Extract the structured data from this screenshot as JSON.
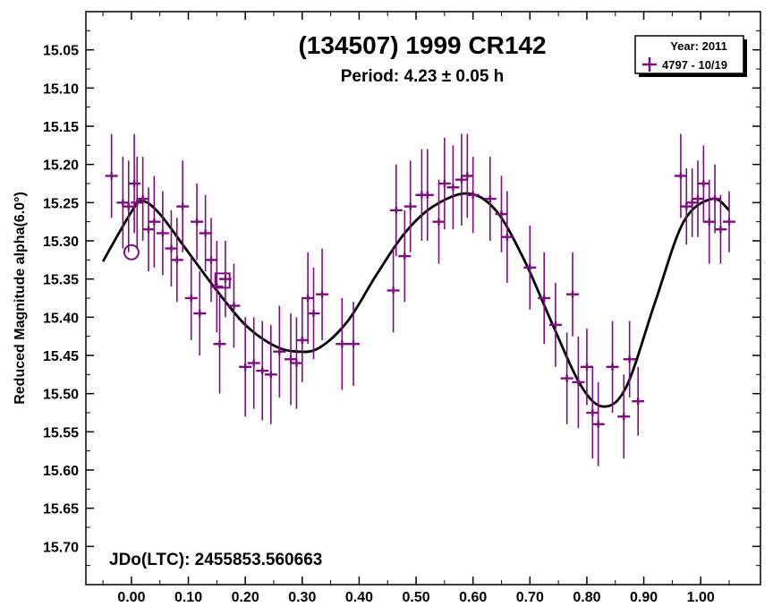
{
  "chart_data": {
    "type": "scatter",
    "title": "(134507) 1999 CR142",
    "subtitle": "Period: 4.23 ± 0.05 h",
    "xlabel": "",
    "ylabel": "Reduced Magnitude alpha(6.0°)",
    "xlim": [
      -0.08,
      1.105
    ],
    "ylim": [
      15.0,
      15.75
    ],
    "y_inverted": true,
    "x_ticks": [
      0.0,
      0.1,
      0.2,
      0.3,
      0.4,
      0.5,
      0.6,
      0.7,
      0.8,
      0.9,
      1.0
    ],
    "x_tick_labels": [
      "0.00",
      "0.10",
      "0.20",
      "0.30",
      "0.40",
      "0.50",
      "0.60",
      "0.70",
      "0.80",
      "0.90",
      "1.00"
    ],
    "y_ticks": [
      15.05,
      15.1,
      15.15,
      15.2,
      15.25,
      15.3,
      15.35,
      15.4,
      15.45,
      15.5,
      15.55,
      15.6,
      15.65,
      15.7
    ],
    "y_tick_labels": [
      "15.05",
      "15.10",
      "15.15",
      "15.20",
      "15.25",
      "15.30",
      "15.35",
      "15.40",
      "15.45",
      "15.50",
      "15.55",
      "15.60",
      "15.65",
      "15.70"
    ],
    "legend": {
      "placement": "top-right",
      "title": "Year: 2011",
      "entries": [
        {
          "label": "4797 - 10/19",
          "color": "#7b0f7b"
        }
      ]
    },
    "annotation": "JDo(LTC): 2455853.560663",
    "series_color": "#7b0f7b",
    "fit_color": "#000000",
    "series": [
      {
        "name": "4797 - 10/19",
        "x": [
          -0.035,
          -0.015,
          -0.005,
          0.005,
          0.01,
          0.02,
          0.03,
          0.04,
          0.055,
          0.07,
          0.08,
          0.09,
          0.105,
          0.115,
          0.12,
          0.13,
          0.14,
          0.15,
          0.155,
          0.165,
          0.18,
          0.2,
          0.215,
          0.23,
          0.245,
          0.26,
          0.28,
          0.29,
          0.3,
          0.31,
          0.32,
          0.335,
          0.37,
          0.39,
          0.46,
          0.465,
          0.48,
          0.49,
          0.51,
          0.52,
          0.54,
          0.55,
          0.565,
          0.58,
          0.59,
          0.6,
          0.63,
          0.65,
          0.66,
          0.7,
          0.725,
          0.745,
          0.765,
          0.775,
          0.785,
          0.8,
          0.81,
          0.82,
          0.845,
          0.865,
          0.875,
          0.89,
          0.965,
          0.975,
          0.985,
          0.995,
          1.005,
          1.015,
          1.025,
          1.035,
          1.05
        ],
        "y": [
          15.215,
          15.25,
          15.255,
          15.225,
          15.25,
          15.245,
          15.285,
          15.275,
          15.29,
          15.31,
          15.325,
          15.255,
          15.375,
          15.275,
          15.395,
          15.29,
          15.325,
          15.36,
          15.435,
          15.35,
          15.385,
          15.465,
          15.46,
          15.47,
          15.475,
          15.445,
          15.455,
          15.46,
          15.43,
          15.375,
          15.395,
          15.37,
          15.435,
          15.435,
          15.365,
          15.26,
          15.32,
          15.255,
          15.24,
          15.24,
          15.275,
          15.225,
          15.23,
          15.22,
          15.215,
          15.24,
          15.245,
          15.265,
          15.295,
          15.335,
          15.375,
          15.41,
          15.48,
          15.37,
          15.485,
          15.465,
          15.525,
          15.54,
          15.465,
          15.53,
          15.455,
          15.51,
          15.215,
          15.255,
          15.25,
          15.245,
          15.225,
          15.275,
          15.245,
          15.285,
          15.275
        ],
        "err": [
          0.055,
          0.06,
          0.06,
          0.065,
          0.06,
          0.055,
          0.055,
          0.06,
          0.055,
          0.05,
          0.055,
          0.06,
          0.055,
          0.05,
          0.055,
          0.05,
          0.055,
          0.06,
          0.065,
          0.05,
          0.055,
          0.065,
          0.06,
          0.065,
          0.065,
          0.06,
          0.06,
          0.06,
          0.055,
          0.06,
          0.06,
          0.06,
          0.06,
          0.055,
          0.055,
          0.06,
          0.06,
          0.06,
          0.06,
          0.06,
          0.055,
          0.06,
          0.055,
          0.06,
          0.055,
          0.05,
          0.055,
          0.05,
          0.06,
          0.055,
          0.06,
          0.055,
          0.06,
          0.055,
          0.06,
          0.05,
          0.06,
          0.055,
          0.06,
          0.055,
          0.05,
          0.045,
          0.055,
          0.05,
          0.045,
          0.05,
          0.05,
          0.055,
          0.045,
          0.045,
          0.04
        ]
      }
    ],
    "fit_curve": {
      "x": [
        -0.05,
        0.0,
        0.02,
        0.05,
        0.1,
        0.15,
        0.2,
        0.25,
        0.29,
        0.33,
        0.38,
        0.43,
        0.48,
        0.53,
        0.59,
        0.64,
        0.69,
        0.74,
        0.79,
        0.83,
        0.87,
        0.92,
        0.97,
        1.02,
        1.05
      ],
      "y": [
        15.327,
        15.262,
        15.248,
        15.265,
        15.315,
        15.365,
        15.41,
        15.437,
        15.445,
        15.44,
        15.405,
        15.345,
        15.29,
        15.255,
        15.238,
        15.26,
        15.325,
        15.41,
        15.49,
        15.517,
        15.49,
        15.38,
        15.275,
        15.245,
        15.26
      ]
    },
    "markers": [
      {
        "shape": "circle",
        "x": 0.0,
        "y": 15.315
      },
      {
        "shape": "square",
        "x": 0.16,
        "y": 15.352
      }
    ]
  }
}
